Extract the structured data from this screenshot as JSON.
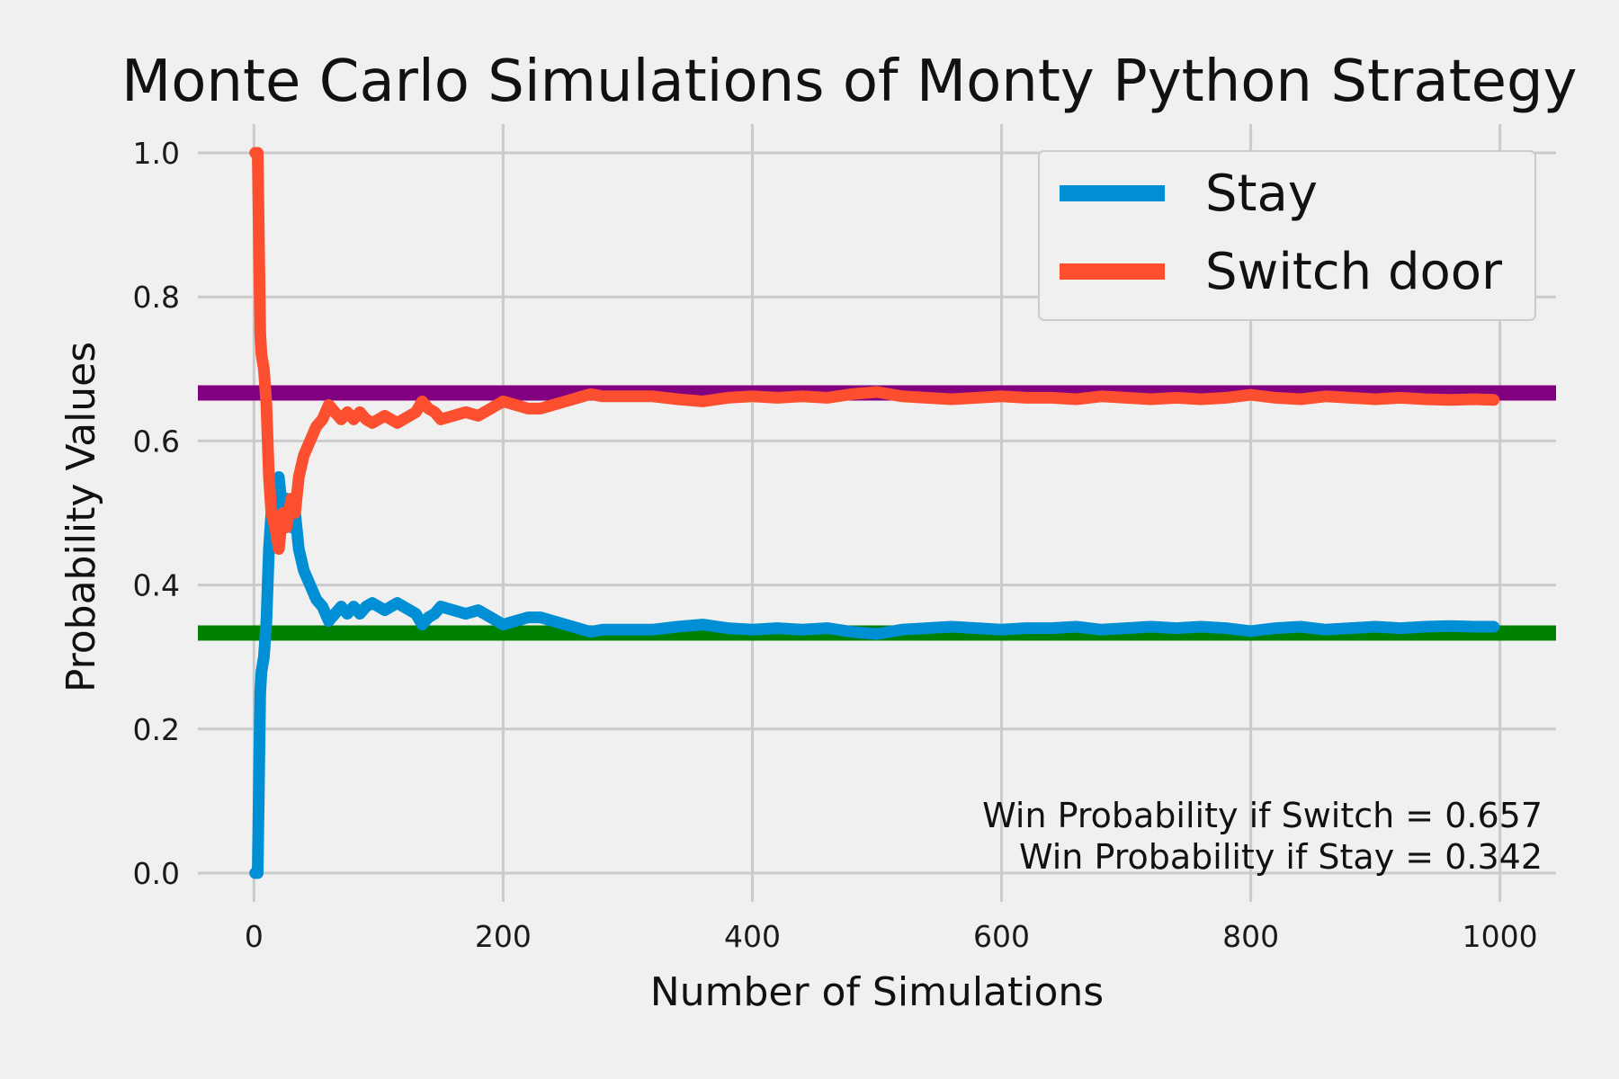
{
  "chart_data": {
    "type": "line",
    "title": "Monte Carlo Simulations of Monty Python Strategy",
    "xlabel": "Number of Simulations",
    "ylabel": "Probability Values",
    "xlim": [
      -45,
      1045
    ],
    "ylim": [
      -0.04,
      1.04
    ],
    "xticks": [
      0,
      200,
      400,
      600,
      800,
      1000
    ],
    "yticks": [
      0.0,
      0.2,
      0.4,
      0.6,
      0.8,
      1.0
    ],
    "xtick_labels": [
      "0",
      "200",
      "400",
      "600",
      "800",
      "1000"
    ],
    "ytick_labels": [
      "0.0",
      "0.2",
      "0.4",
      "0.6",
      "0.8",
      "1.0"
    ],
    "grid": true,
    "legend_position": "top-right",
    "colors": {
      "background": "#f0f0f0",
      "grid": "#cbcbcb",
      "stay": "#008fd5",
      "switch": "#fc4f30",
      "reference_switch": "#800080",
      "reference_stay": "#008000"
    },
    "reference_lines": [
      {
        "y": 0.6667,
        "color": "#800080"
      },
      {
        "y": 0.3333,
        "color": "#008000"
      }
    ],
    "series": [
      {
        "name": "Stay",
        "color": "#008fd5",
        "x": [
          1,
          3,
          5,
          6,
          8,
          10,
          12,
          14,
          17,
          20,
          23,
          26,
          30,
          33,
          36,
          40,
          45,
          50,
          55,
          60,
          65,
          70,
          75,
          80,
          85,
          90,
          95,
          100,
          105,
          110,
          115,
          120,
          125,
          130,
          135,
          140,
          145,
          150,
          160,
          170,
          180,
          190,
          200,
          210,
          220,
          230,
          240,
          250,
          260,
          270,
          280,
          300,
          320,
          340,
          360,
          380,
          400,
          420,
          440,
          460,
          480,
          500,
          520,
          540,
          560,
          580,
          600,
          620,
          640,
          660,
          680,
          700,
          720,
          740,
          760,
          780,
          800,
          820,
          840,
          860,
          880,
          900,
          920,
          940,
          960,
          980,
          995
        ],
        "y": [
          0.0,
          0.0,
          0.25,
          0.28,
          0.3,
          0.35,
          0.45,
          0.5,
          0.52,
          0.55,
          0.5,
          0.52,
          0.48,
          0.5,
          0.45,
          0.42,
          0.4,
          0.38,
          0.37,
          0.35,
          0.36,
          0.37,
          0.36,
          0.37,
          0.36,
          0.37,
          0.375,
          0.37,
          0.365,
          0.37,
          0.375,
          0.37,
          0.365,
          0.36,
          0.345,
          0.355,
          0.36,
          0.37,
          0.365,
          0.36,
          0.365,
          0.355,
          0.345,
          0.35,
          0.355,
          0.355,
          0.35,
          0.345,
          0.34,
          0.335,
          0.338,
          0.338,
          0.338,
          0.342,
          0.345,
          0.34,
          0.338,
          0.34,
          0.338,
          0.34,
          0.335,
          0.332,
          0.338,
          0.34,
          0.342,
          0.34,
          0.338,
          0.34,
          0.34,
          0.342,
          0.338,
          0.34,
          0.342,
          0.34,
          0.342,
          0.34,
          0.336,
          0.34,
          0.342,
          0.338,
          0.34,
          0.342,
          0.34,
          0.342,
          0.343,
          0.342,
          0.342
        ]
      },
      {
        "name": "Switch door",
        "color": "#fc4f30",
        "x": [
          1,
          3,
          5,
          6,
          8,
          10,
          12,
          14,
          17,
          20,
          23,
          26,
          30,
          33,
          36,
          40,
          45,
          50,
          55,
          60,
          65,
          70,
          75,
          80,
          85,
          90,
          95,
          100,
          105,
          110,
          115,
          120,
          125,
          130,
          135,
          140,
          145,
          150,
          160,
          170,
          180,
          190,
          200,
          210,
          220,
          230,
          240,
          250,
          260,
          270,
          280,
          300,
          320,
          340,
          360,
          380,
          400,
          420,
          440,
          460,
          480,
          500,
          520,
          540,
          560,
          580,
          600,
          620,
          640,
          660,
          680,
          700,
          720,
          740,
          760,
          780,
          800,
          820,
          840,
          860,
          880,
          900,
          920,
          940,
          960,
          980,
          995
        ],
        "y": [
          1.0,
          1.0,
          0.75,
          0.72,
          0.7,
          0.65,
          0.55,
          0.5,
          0.48,
          0.45,
          0.5,
          0.48,
          0.52,
          0.5,
          0.55,
          0.58,
          0.6,
          0.62,
          0.63,
          0.65,
          0.64,
          0.63,
          0.64,
          0.63,
          0.64,
          0.63,
          0.625,
          0.63,
          0.635,
          0.63,
          0.625,
          0.63,
          0.635,
          0.64,
          0.655,
          0.645,
          0.64,
          0.63,
          0.635,
          0.64,
          0.635,
          0.645,
          0.655,
          0.65,
          0.645,
          0.645,
          0.65,
          0.655,
          0.66,
          0.665,
          0.662,
          0.662,
          0.662,
          0.658,
          0.655,
          0.66,
          0.662,
          0.66,
          0.662,
          0.66,
          0.665,
          0.668,
          0.662,
          0.66,
          0.658,
          0.66,
          0.662,
          0.66,
          0.66,
          0.658,
          0.662,
          0.66,
          0.658,
          0.66,
          0.658,
          0.66,
          0.664,
          0.66,
          0.658,
          0.662,
          0.66,
          0.658,
          0.66,
          0.658,
          0.657,
          0.658,
          0.657
        ]
      }
    ],
    "annotations": [
      "Win Probability if Switch = 0.657",
      "Win Probability if Stay = 0.342"
    ]
  }
}
